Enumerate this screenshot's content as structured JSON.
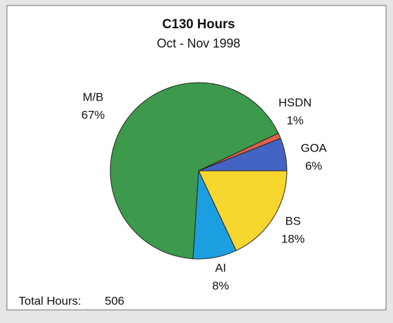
{
  "chart_data": {
    "type": "pie",
    "title": "C130 Hours",
    "subtitle": "Oct - Nov 1998",
    "categories": [
      "BS",
      "AI",
      "M/B",
      "HSDN",
      "GOA"
    ],
    "values": [
      18,
      8,
      67,
      1,
      6
    ],
    "value_labels": [
      "18%",
      "8%",
      "67%",
      "1%",
      "6%"
    ],
    "colors": [
      "#f7d62e",
      "#1c9fe0",
      "#3d9a4c",
      "#e0604c",
      "#4464c4"
    ],
    "annotation": {
      "label": "Total Hours:",
      "value": 506
    }
  }
}
